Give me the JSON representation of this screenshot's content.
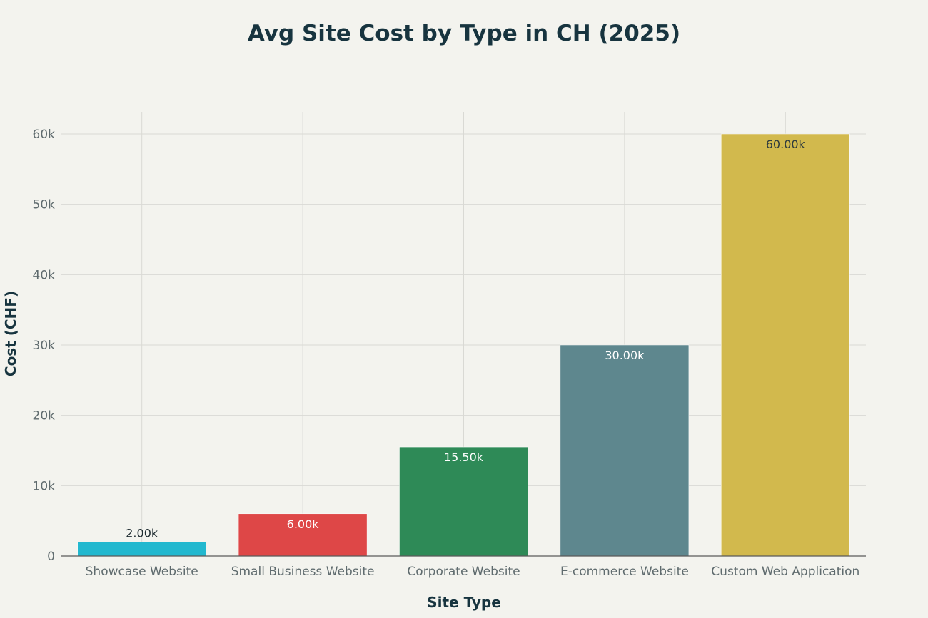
{
  "chart_data": {
    "type": "bar",
    "title": "Avg Site Cost by Type in CH (2025)",
    "xlabel": "Site Type",
    "ylabel": "Cost (CHF)",
    "categories": [
      "Showcase Website",
      "Small Business Website",
      "Corporate Website",
      "E-commerce Website",
      "Custom Web Application"
    ],
    "values": [
      2000,
      6000,
      15500,
      30000,
      60000
    ],
    "value_labels": [
      "2.00k",
      "6.00k",
      "15.50k",
      "30.00k",
      "60.00k"
    ],
    "ylim": [
      0,
      63000
    ],
    "y_ticks": [
      0,
      10000,
      20000,
      30000,
      40000,
      50000,
      60000
    ],
    "y_tick_labels": [
      "0",
      "10k",
      "20k",
      "30k",
      "40k",
      "50k",
      "60k"
    ],
    "grid": true,
    "legend": false,
    "colors": [
      "#22b8cf",
      "#de4747",
      "#2e8a57",
      "#5e878e",
      "#d2b94d"
    ],
    "label_colors": [
      "#1e2b30",
      "#ffffff",
      "#ffffff",
      "#ffffff",
      "#2e3a3d"
    ],
    "background": "#f3f3ee",
    "grid_color": "#d9d9d4",
    "axis_color": "#5a5a5a"
  }
}
